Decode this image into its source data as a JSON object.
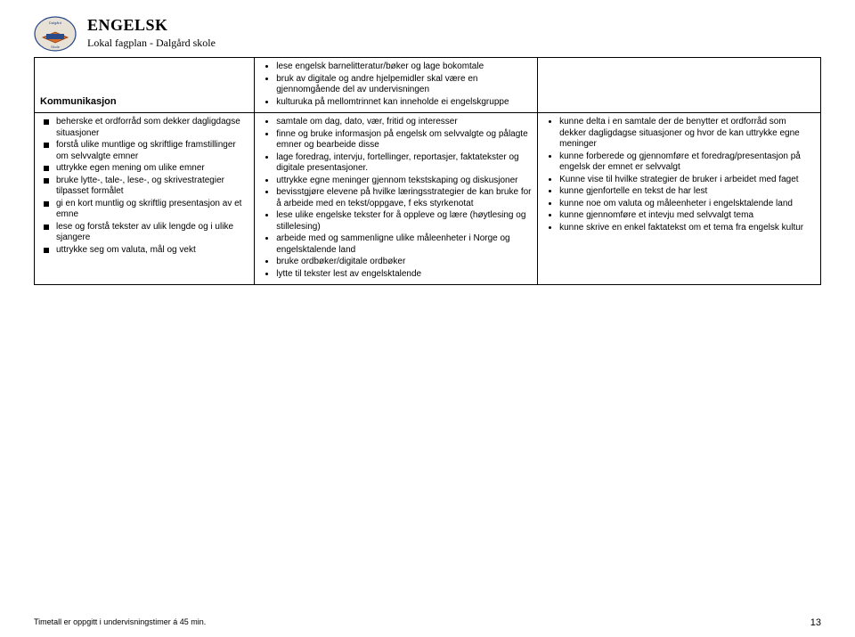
{
  "header": {
    "title": "ENGELSK",
    "subtitle": "Lokal fagplan - Dalgård skole"
  },
  "row1_label": "Kommunikasjon",
  "row1_col2": [
    "lese engelsk barnelitteratur/bøker og lage bokomtale",
    "bruk av digitale og andre hjelpemidler skal være en gjennomgående del av undervisningen",
    "kulturuka på mellomtrinnet kan inneholde ei engelskgruppe"
  ],
  "row2_col1": [
    "beherske et ordforråd som dekker dagligdagse situasjoner",
    "forstå ulike muntlige og skriftlige framstillinger om selvvalgte emner",
    "uttrykke egen mening om ulike emner",
    "bruke lytte-, tale-, lese-, og skrivestrategier tilpasset formålet",
    "gi en kort muntlig og skriftlig presentasjon av et emne",
    "lese og forstå tekster av ulik lengde og i ulike sjangere",
    "uttrykke seg om valuta, mål og vekt"
  ],
  "row2_col2": [
    "samtale om dag, dato, vær, fritid og interesser",
    "finne og bruke informasjon på engelsk om selvvalgte og pålagte emner og bearbeide disse",
    "lage foredrag, intervju, fortellinger, reportasjer, faktatekster og digitale presentasjoner.",
    "uttrykke egne meninger gjennom tekstskaping og diskusjoner",
    "bevisstgjøre elevene på hvilke læringsstrategier  de kan bruke for å arbeide med en tekst/oppgave, f eks styrkenotat",
    "lese ulike engelske tekster for å oppleve og lære (høytlesing og stillelesing)",
    "arbeide med og sammenligne ulike måleenheter i Norge og engelsktalende land",
    "bruke ordbøker/digitale ordbøker",
    "lytte til tekster lest av engelsktalende"
  ],
  "row2_col3": [
    "kunne delta i en samtale der de benytter et ordforråd som dekker dagligdagse situasjoner og hvor de kan uttrykke egne meninger",
    "kunne forberede og gjennomføre et foredrag/presentasjon på engelsk der emnet er selvvalgt",
    "Kunne vise til hvilke strategier de bruker i arbeidet med faget",
    "kunne gjenfortelle en tekst de har lest",
    "kunne noe om valuta og måleenheter i engelsktalende land",
    "kunne gjennomføre et intevju med selvvalgt tema",
    "kunne skrive en enkel faktatekst om et tema fra engelsk kultur"
  ],
  "footer_note": "Timetall er oppgitt i undervisningstimer á 45 min.",
  "page_number": "13"
}
